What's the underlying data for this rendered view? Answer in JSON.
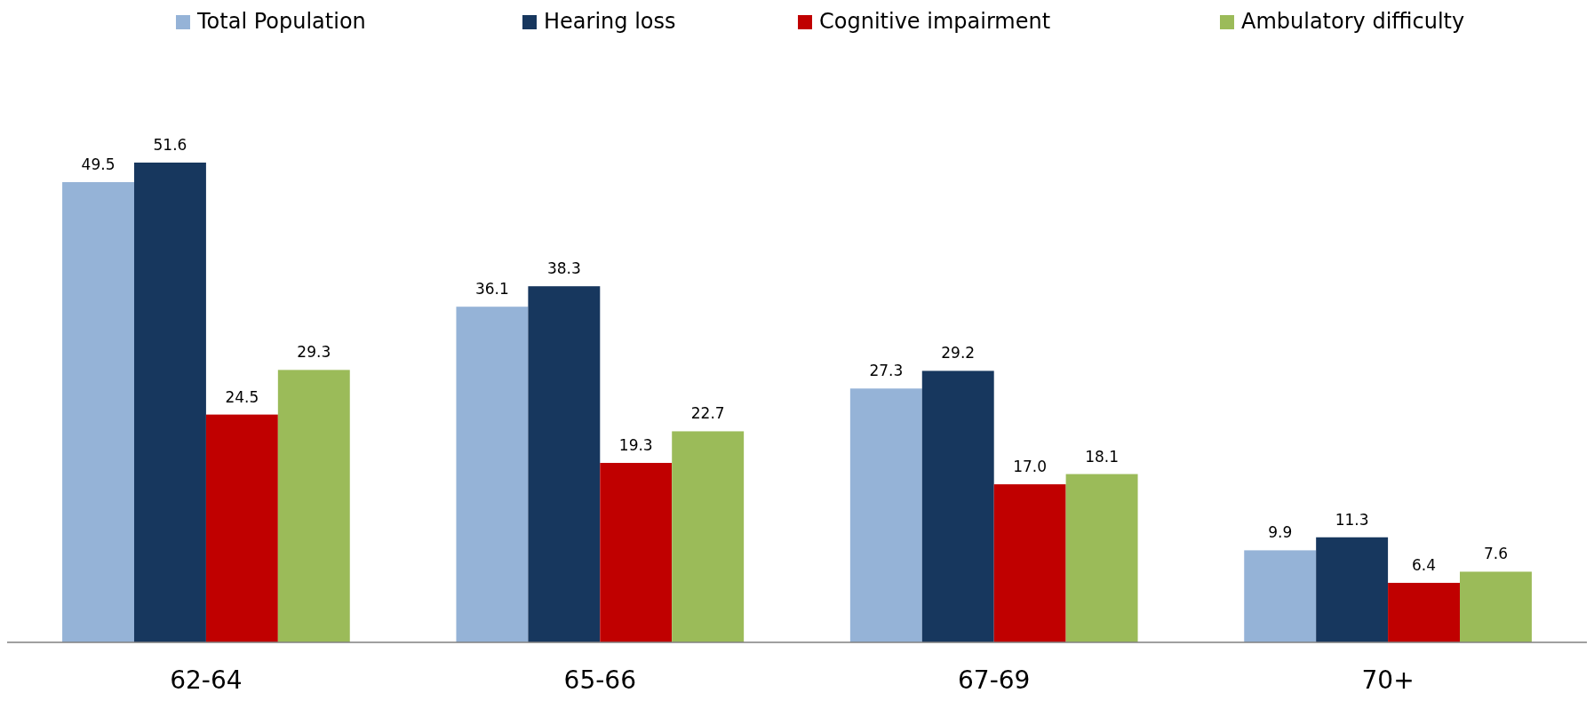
{
  "chart_data": {
    "type": "bar",
    "categories": [
      "62-64",
      "65-66",
      "67-69",
      "70+"
    ],
    "series": [
      {
        "name": "Total Population",
        "color": "#95b3d7",
        "values": [
          49.5,
          36.1,
          27.3,
          9.9
        ],
        "value_labels": [
          "49.5",
          "36.1",
          "27.3",
          "9.9"
        ]
      },
      {
        "name": "Hearing loss",
        "color": "#17375e",
        "values": [
          51.6,
          38.3,
          29.2,
          11.3
        ],
        "value_labels": [
          "51.6",
          "38.3",
          "29.2",
          "11.3"
        ]
      },
      {
        "name": "Cognitive impairment",
        "color": "#c00000",
        "values": [
          24.5,
          19.3,
          17.0,
          6.4
        ],
        "value_labels": [
          "24.5",
          "19.3",
          "17.0",
          "6.4"
        ]
      },
      {
        "name": "Ambulatory difficulty",
        "color": "#9bbb59",
        "values": [
          29.3,
          22.7,
          18.1,
          7.6
        ],
        "value_labels": [
          "29.3",
          "22.7",
          "18.1",
          "7.6"
        ]
      }
    ],
    "legend": "top"
  }
}
